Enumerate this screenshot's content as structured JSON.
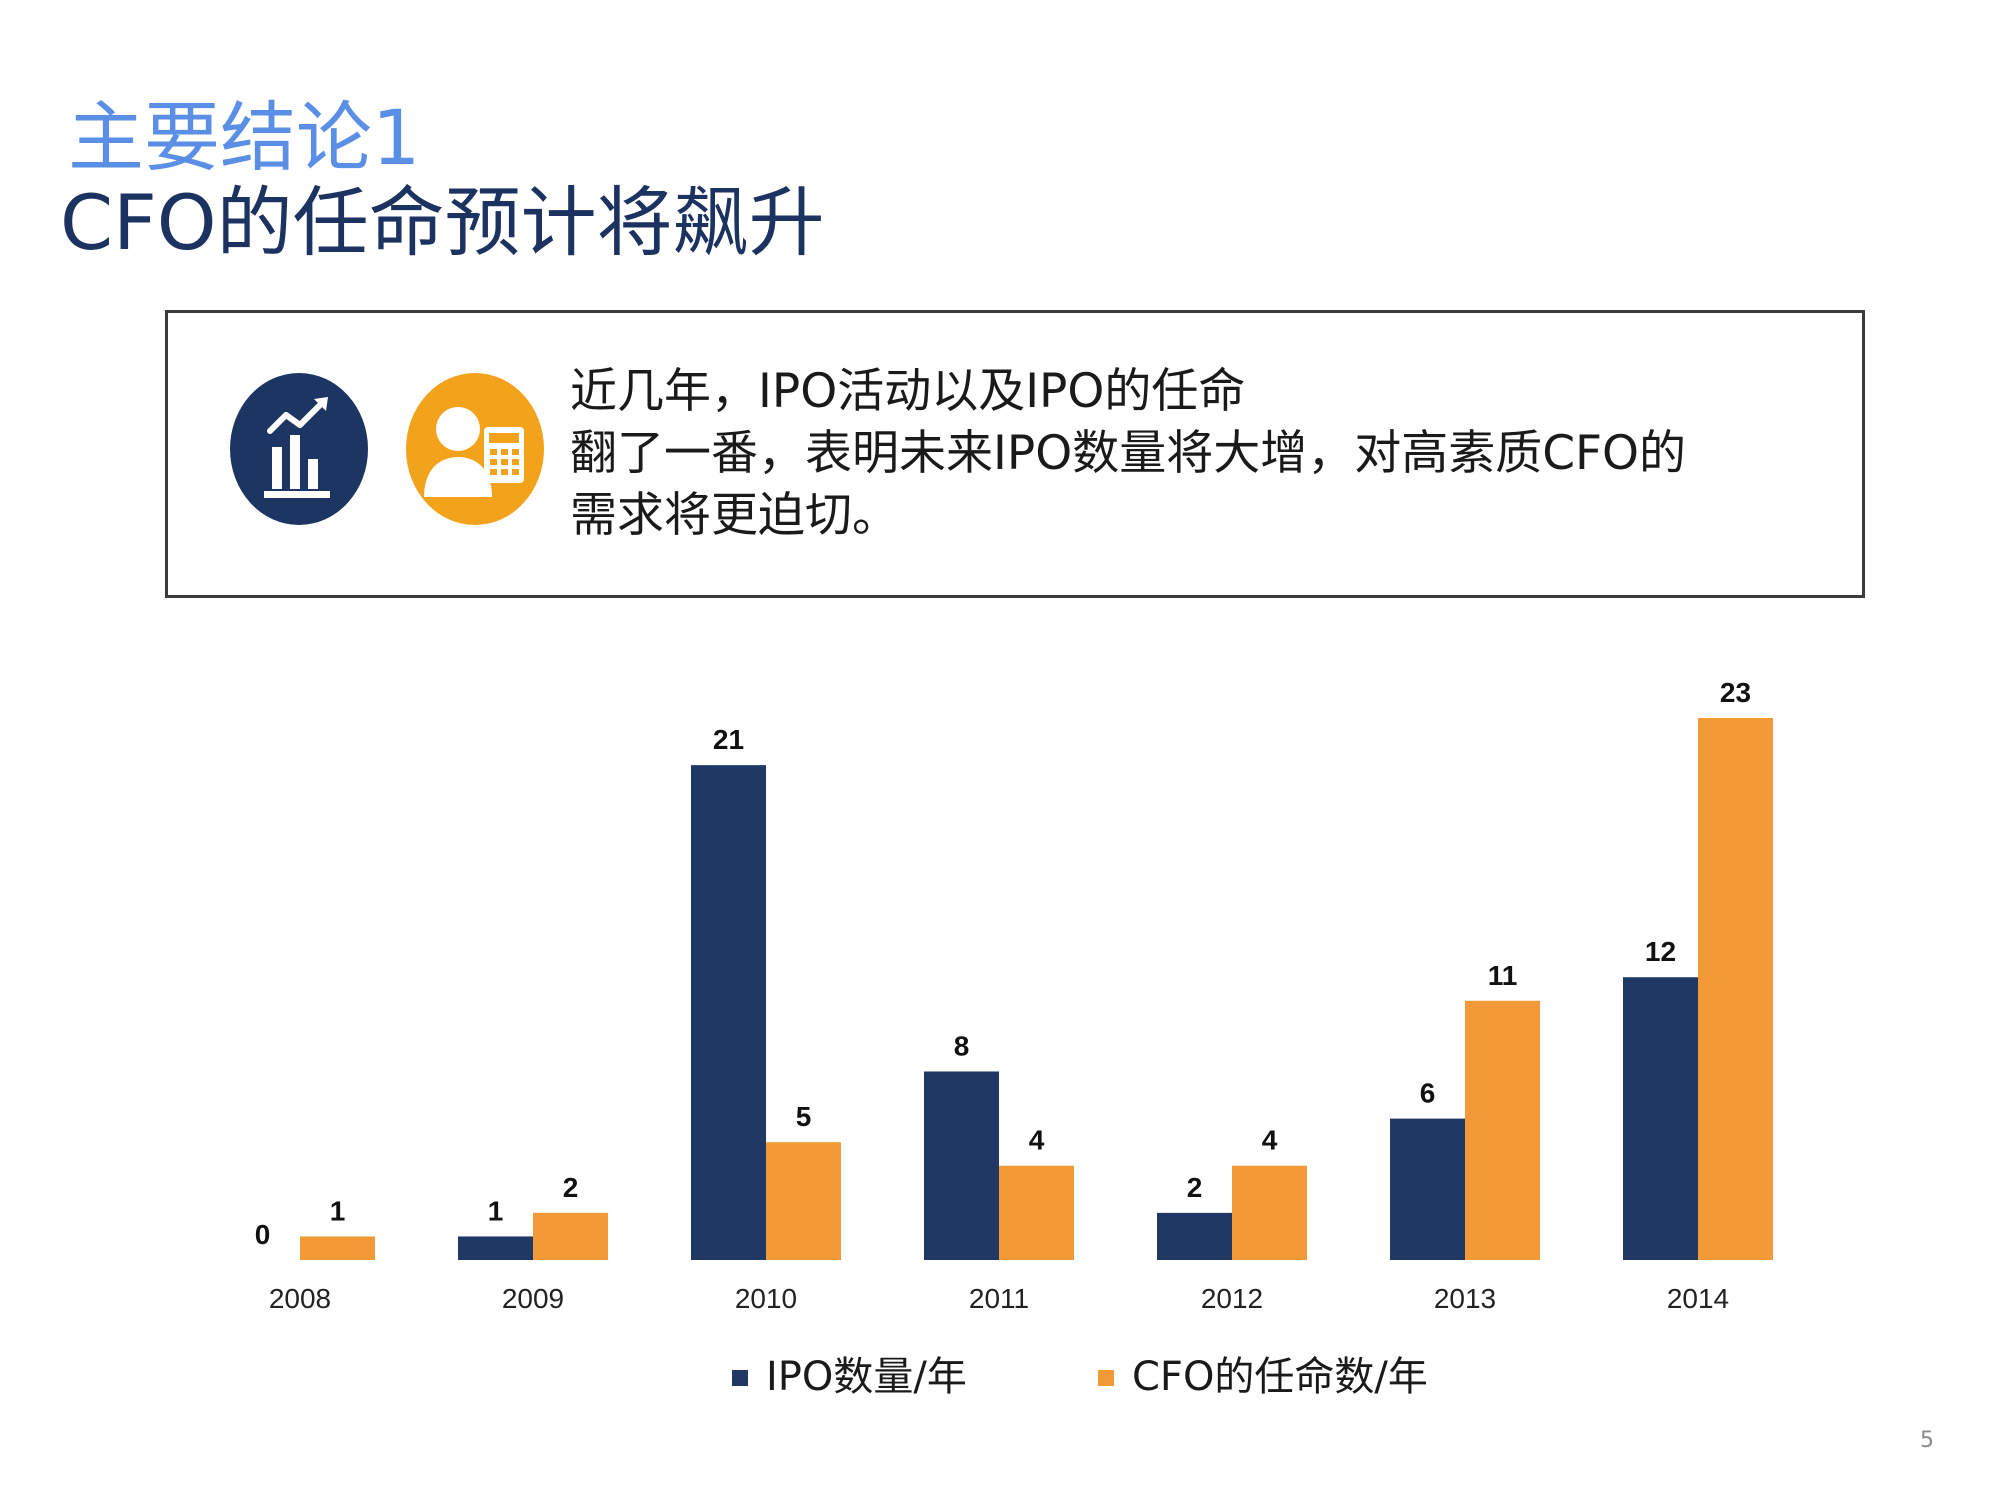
{
  "slide": {
    "kicker": "主要结论1",
    "headline": "CFO的任命预计将飙升",
    "page_number": "5"
  },
  "callout": {
    "lines": [
      "近几年，IPO活动以及IPO的任命",
      "翻了一番，表明未来IPO数量将大增，对高素质CFO的",
      "需求将更迫切。"
    ],
    "icons": [
      "bar-chart-trend-icon",
      "person-calculator-icon"
    ],
    "colors": {
      "navy": "#1d3562",
      "orange": "#f3a21b"
    }
  },
  "chart_data": {
    "type": "bar",
    "categories": [
      "2008",
      "2009",
      "2010",
      "2011",
      "2012",
      "2013",
      "2014"
    ],
    "series": [
      {
        "name": "IPO数量/年",
        "values": [
          0,
          1,
          21,
          8,
          2,
          6,
          12
        ],
        "color": "#1f3864"
      },
      {
        "name": "CFO的任命数/年",
        "values": [
          1,
          2,
          5,
          4,
          4,
          11,
          23
        ],
        "color": "#f29a38"
      }
    ],
    "title": "",
    "xlabel": "",
    "ylabel": "",
    "ylim": [
      0,
      23
    ],
    "grid": false,
    "y_axis_visible": false,
    "data_labels": true,
    "legend": "bottom"
  }
}
